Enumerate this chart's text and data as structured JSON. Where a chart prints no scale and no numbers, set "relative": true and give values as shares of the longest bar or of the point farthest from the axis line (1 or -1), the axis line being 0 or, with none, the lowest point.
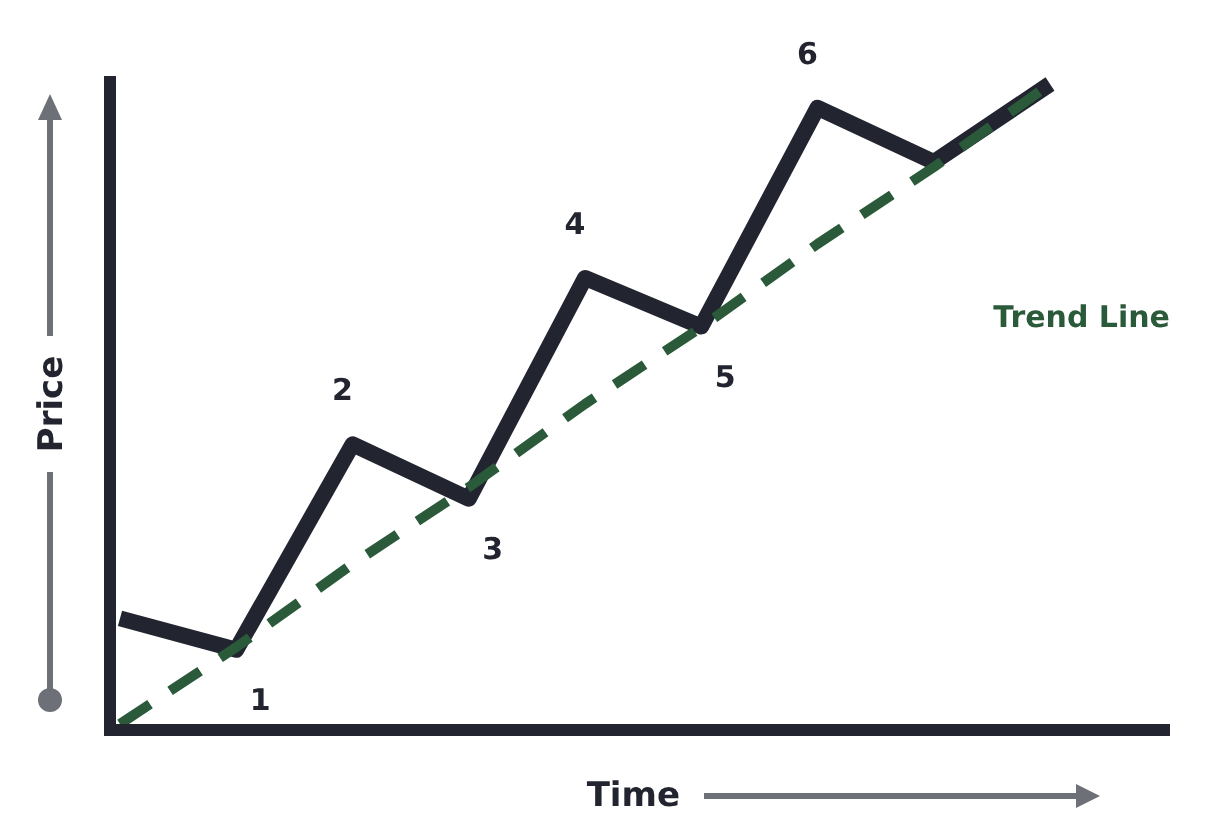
{
  "chart_data": {
    "type": "line",
    "relative": true,
    "xlabel": "Time",
    "ylabel": "Price",
    "categories": [
      null,
      null,
      null,
      null,
      null,
      null,
      null,
      null,
      null
    ],
    "legend": false,
    "annotations": [
      "1",
      "2",
      "3",
      "4",
      "5",
      "6"
    ],
    "series": [
      {
        "color": "#22252f",
        "values": [
          0.165,
          0.116,
          0.437,
          0.352,
          0.697,
          0.621,
          0.963,
          0.878,
          1.0
        ],
        "line_style": "solid"
      },
      {
        "name": "Trend Line",
        "color": "#2a5a3a",
        "values": [
          0.0,
          0.12,
          0.25,
          0.37,
          0.5,
          0.62,
          0.75,
          0.87,
          1.0
        ],
        "line_style": "dashed"
      }
    ]
  }
}
